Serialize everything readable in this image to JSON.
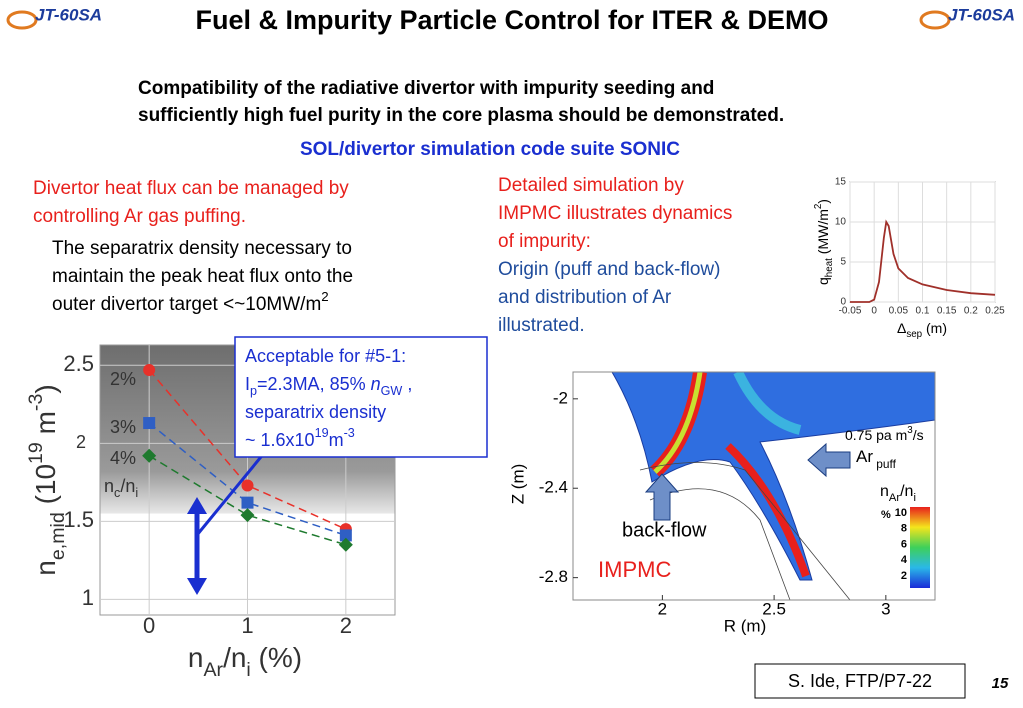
{
  "header": {
    "title": "Fuel & Impurity Particle Control for ITER & DEMO",
    "logo": "JT-60SA"
  },
  "intro": [
    "Compatibility of the radiative divertor with impurity seeding and",
    "sufficiently high fuel purity in the core plasma should be demonstrated."
  ],
  "subtitle": "SOL/divertor simulation code suite SONIC",
  "left_text": {
    "red": [
      "Divertor heat flux can be managed by",
      "controlling Ar gas puffing."
    ],
    "black": [
      [
        "The separatrix density necessary to"
      ],
      [
        "maintain the peak heat flux onto the"
      ],
      [
        "outer divertor target <~10MW/m",
        "2"
      ]
    ]
  },
  "right_text": {
    "red": [
      "Detailed simulation by",
      "IMPMC illustrates dynamics",
      "of impurity:"
    ],
    "blue": [
      "Origin (puff and back-flow)",
      "and distribution of Ar",
      "illustrated."
    ]
  },
  "callout": [
    [
      "Acceptable for #5-1:"
    ],
    [
      "I",
      "p",
      "=2.3MA, 85% ",
      "n",
      "GW",
      " ,"
    ],
    [
      "separatrix density"
    ],
    [
      " ~ 1.6x10",
      "19",
      "m",
      "-3"
    ]
  ],
  "density_plot": {
    "type": "scatter",
    "xlabel": [
      "n",
      "Ar",
      "/n",
      "i",
      " (%)"
    ],
    "ylabel": [
      "n",
      "e,mid",
      " (10",
      "19",
      " m",
      "-3",
      ")"
    ],
    "xlim": [
      -0.5,
      2.5
    ],
    "ylim": [
      0.9,
      2.63
    ],
    "xticks": [
      0,
      1,
      2
    ],
    "yticks": [
      1,
      1.5,
      2,
      2.5
    ],
    "shaded_above": 1.55,
    "legend_title": [
      "n",
      "c",
      "/n",
      "i"
    ],
    "series": [
      {
        "name": "2%",
        "color": "#e8312a",
        "marker": "circle",
        "x": [
          0,
          1,
          2
        ],
        "values": [
          2.47,
          1.73,
          1.45
        ]
      },
      {
        "name": "3%",
        "color": "#2f5fc4",
        "marker": "square",
        "x": [
          0,
          1,
          2
        ],
        "values": [
          2.13,
          1.62,
          1.41
        ]
      },
      {
        "name": "4%",
        "color": "#1e7a2e",
        "marker": "diamond",
        "x": [
          0,
          1,
          2
        ],
        "values": [
          1.92,
          1.54,
          1.35
        ]
      }
    ]
  },
  "heat_plot": {
    "type": "line",
    "xlabel": [
      "Δ",
      "sep",
      " (m)"
    ],
    "ylabel": [
      "q",
      "heat",
      " (MW/m",
      "2",
      ")"
    ],
    "xlim": [
      -0.05,
      0.25
    ],
    "ylim": [
      0,
      15
    ],
    "xticks": [
      -0.05,
      0,
      0.05,
      0.1,
      0.15,
      0.2,
      0.25
    ],
    "yticks": [
      0,
      5,
      10,
      15
    ],
    "color": "#a0302a",
    "x": [
      -0.05,
      -0.01,
      0,
      0.01,
      0.02,
      0.025,
      0.03,
      0.04,
      0.05,
      0.07,
      0.1,
      0.15,
      0.2,
      0.25
    ],
    "values": [
      0,
      0,
      0.3,
      2.5,
      8,
      10,
      9.5,
      6,
      4.2,
      3,
      2.2,
      1.5,
      1.1,
      0.9
    ]
  },
  "impmc_plot": {
    "xlabel": "R (m)",
    "ylabel": "Z (m)",
    "xlim": [
      1.6,
      3.22
    ],
    "ylim": [
      -2.9,
      -1.88
    ],
    "xticks": [
      2,
      2.5,
      3
    ],
    "yticks": [
      -2,
      -2.4,
      -2.8
    ],
    "labels": {
      "backflow": "back-flow",
      "code": "IMPMC",
      "puff_rate": [
        "0.75 pa m",
        "3",
        "/s"
      ],
      "puff": [
        "Ar",
        " puff"
      ],
      "colorbar_title": [
        "n",
        "Ar",
        "/n",
        "i"
      ],
      "colorbar_unit": "%"
    },
    "colorbar": {
      "lim": [
        0.5,
        10.75
      ],
      "ticks": [
        10,
        8,
        6,
        4,
        2
      ]
    }
  },
  "footer": {
    "reference": "S. Ide, FTP/P7-22",
    "page": "15"
  }
}
